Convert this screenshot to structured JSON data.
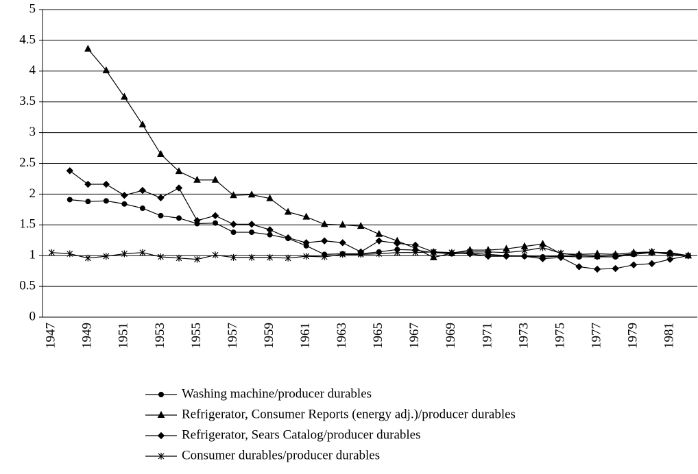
{
  "chart_data": {
    "type": "line",
    "categories": [
      "1947",
      null,
      "1949",
      null,
      "1951",
      null,
      "1953",
      null,
      "1955",
      null,
      "1957",
      null,
      "1959",
      null,
      "1961",
      null,
      "1963",
      null,
      "1965",
      null,
      "1967",
      null,
      "1969",
      null,
      "1971",
      null,
      "1973",
      null,
      "1975",
      null,
      "1977",
      null,
      "1979",
      null,
      "1981",
      null
    ],
    "ylim": [
      0,
      5
    ],
    "yticks": [
      0,
      0.5,
      1,
      1.5,
      2,
      2.5,
      3,
      3.5,
      4,
      4.5,
      5
    ],
    "grid": true,
    "legend": "bottom",
    "series": [
      {
        "name": "Washing machine/producer durables",
        "color": "#000000",
        "marker": "circle",
        "values": [
          null,
          1.91,
          1.88,
          1.89,
          1.84,
          1.77,
          1.65,
          1.61,
          1.52,
          1.53,
          1.38,
          1.38,
          1.34,
          1.28,
          1.16,
          1.02,
          1.03,
          1.03,
          1.06,
          1.1,
          1.09,
          1.05,
          1.03,
          1.04,
          1.02,
          1.0,
          0.99,
          0.98,
          0.99,
          0.98,
          0.98,
          0.98,
          1.02,
          1.05,
          1.05,
          1.0
        ]
      },
      {
        "name": "Refrigerator, Consumer Reports (energy adj.)/producer durables",
        "color": "#000000",
        "marker": "triangle",
        "values": [
          null,
          null,
          4.36,
          4.01,
          3.58,
          3.13,
          2.65,
          2.37,
          2.23,
          2.23,
          1.98,
          1.99,
          1.93,
          1.71,
          1.63,
          1.51,
          1.5,
          1.48,
          1.35,
          1.24,
          1.12,
          0.97,
          1.04,
          1.09,
          1.09,
          1.11,
          1.15,
          1.19,
          1.03,
          1.02,
          1.03,
          1.02,
          1.05,
          1.06,
          1.04,
          1.0
        ]
      },
      {
        "name": "Refrigerator, Sears Catalog/producer durables",
        "color": "#000000",
        "marker": "diamond",
        "values": [
          null,
          2.38,
          2.16,
          2.16,
          1.98,
          2.06,
          1.94,
          2.1,
          1.57,
          1.65,
          1.51,
          1.51,
          1.42,
          1.29,
          1.21,
          1.24,
          1.21,
          1.06,
          1.24,
          1.2,
          1.17,
          1.06,
          1.04,
          1.03,
          0.99,
          0.99,
          0.99,
          0.95,
          0.97,
          0.82,
          0.78,
          0.79,
          0.85,
          0.87,
          0.94,
          1.0
        ]
      },
      {
        "name": "Consumer durables/producer durables",
        "color": "#000000",
        "marker": "asterisk",
        "values": [
          1.05,
          1.03,
          0.96,
          0.99,
          1.03,
          1.05,
          0.98,
          0.96,
          0.94,
          1.01,
          0.97,
          0.97,
          0.97,
          0.96,
          0.99,
          0.98,
          1.02,
          1.02,
          1.03,
          1.05,
          1.05,
          1.06,
          1.05,
          1.06,
          1.06,
          1.05,
          1.08,
          1.13,
          1.04,
          1.0,
          0.99,
          1.0,
          1.03,
          1.06,
          1.02,
          1.0
        ]
      }
    ]
  }
}
